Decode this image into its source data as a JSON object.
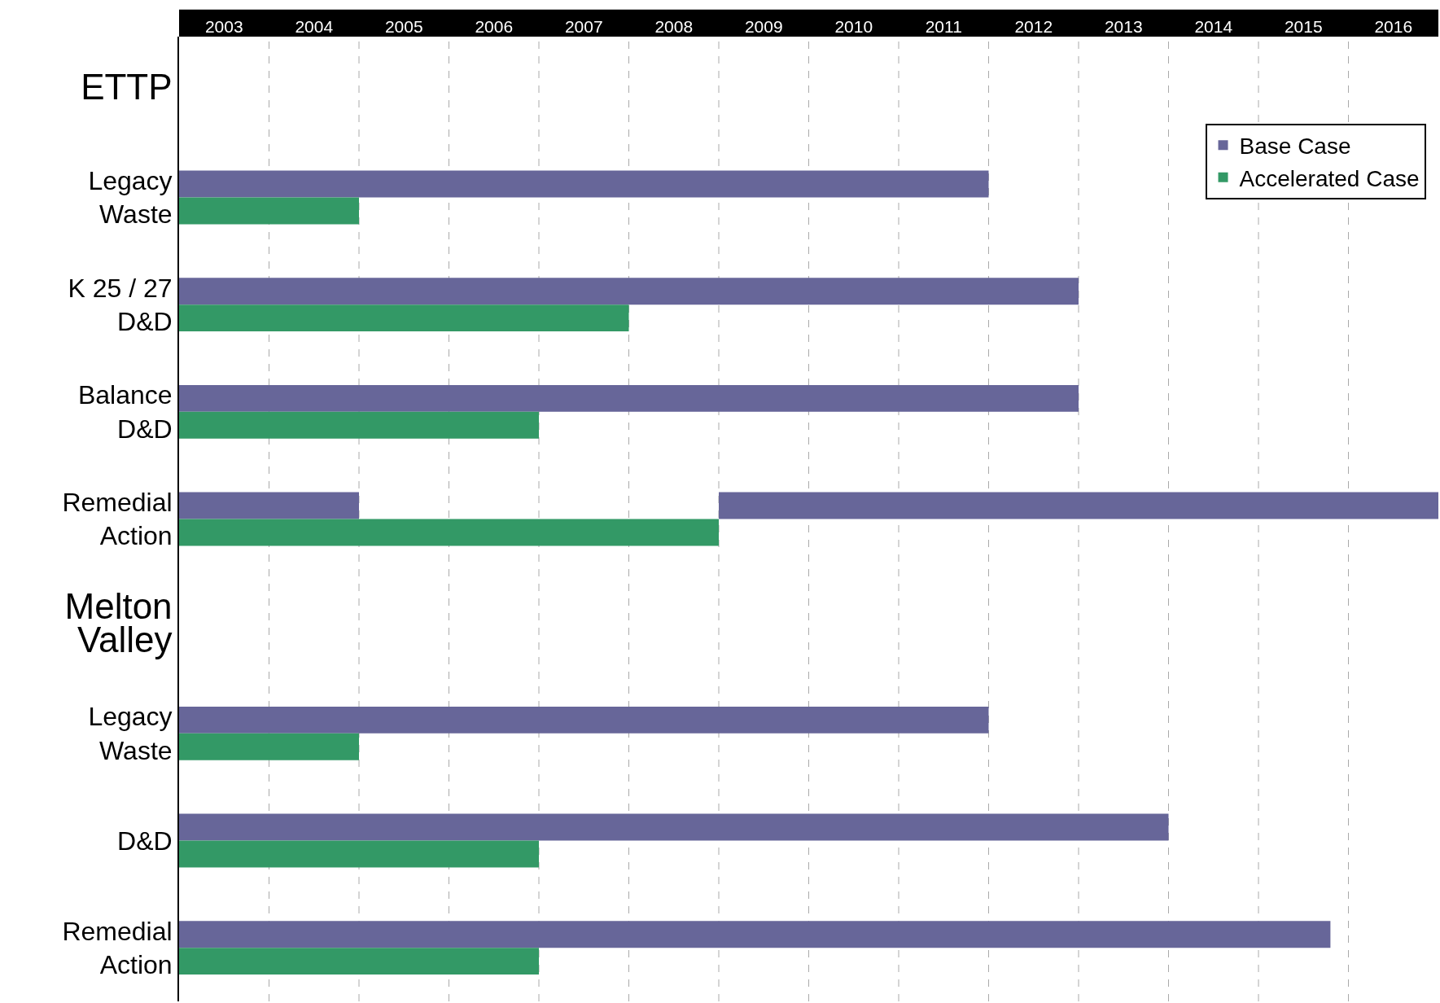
{
  "chart_data": {
    "type": "bar",
    "orientation": "horizontal",
    "categories": [
      "ETTP",
      "Legacy\nWaste",
      "K 25 / 27\nD&D",
      "Balance\nD&D",
      "Remedial\nAction",
      "Melton\nValley",
      "Legacy\nWaste",
      "D&D",
      "Remedial\nAction"
    ],
    "series": [
      {
        "name": "Base Case",
        "color": "#676699",
        "base": [
          null,
          2003,
          2003,
          2003,
          2003,
          null,
          2003,
          2003,
          2003
        ],
        "values": [
          null,
          9,
          10,
          10,
          2,
          null,
          9,
          11,
          12.8
        ]
      },
      {
        "name": "Accelerated Case",
        "color": "#339966",
        "base": [
          null,
          2003,
          2003,
          2003,
          2003,
          null,
          2003,
          2003,
          2003
        ],
        "values": [
          null,
          2,
          5,
          4,
          6,
          null,
          2,
          4,
          4
        ]
      },
      {
        "color": "#676699",
        "base": [
          null,
          null,
          null,
          null,
          2009,
          null,
          null,
          null,
          null
        ],
        "values": [
          null,
          null,
          null,
          null,
          8,
          null,
          null,
          null,
          null
        ]
      }
    ],
    "xlim": [
      2003,
      2017
    ],
    "xticks": [
      {
        "value": 2003.5,
        "label": "2003"
      },
      {
        "value": 2004,
        "label": null
      },
      {
        "value": 2004.5,
        "label": "2004"
      },
      {
        "value": 2005,
        "label": null
      },
      {
        "value": 2005.5,
        "label": "2005"
      },
      {
        "value": 2006,
        "label": null
      },
      {
        "value": 2006.5,
        "label": "2006"
      },
      {
        "value": 2007,
        "label": null
      },
      {
        "value": 2007.5,
        "label": "2007"
      },
      {
        "value": 2008,
        "label": null
      },
      {
        "value": 2008.5,
        "label": "2008"
      },
      {
        "value": 2009,
        "label": null
      },
      {
        "value": 2009.5,
        "label": "2009"
      },
      {
        "value": 2010,
        "label": null
      },
      {
        "value": 2010.5,
        "label": "2010"
      },
      {
        "value": 2011,
        "label": null
      },
      {
        "value": 2011.5,
        "label": "2011"
      },
      {
        "value": 2012,
        "label": null
      },
      {
        "value": 2012.5,
        "label": "2012"
      },
      {
        "value": 2013,
        "label": null
      },
      {
        "value": 2013.5,
        "label": "2013"
      },
      {
        "value": 2014,
        "label": null
      },
      {
        "value": 2014.5,
        "label": "2014"
      },
      {
        "value": 2015,
        "label": null
      },
      {
        "value": 2015.5,
        "label": "2015"
      },
      {
        "value": 2016,
        "label": null
      },
      {
        "value": 2016.5,
        "label": "2016"
      }
    ],
    "grid": "x",
    "legend": "top right"
  }
}
